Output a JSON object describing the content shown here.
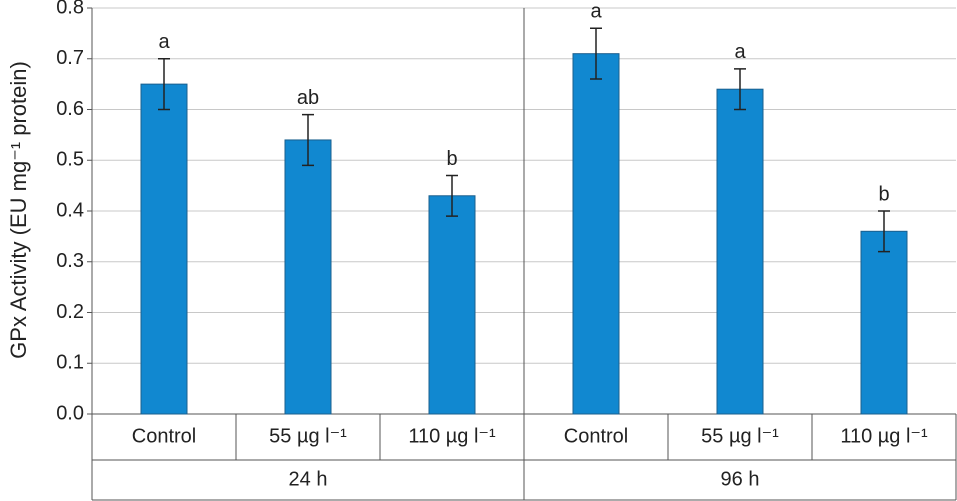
{
  "chart_data": {
    "type": "bar",
    "y_label": "GPx Activity (EU mg⁻¹ protein)",
    "categories": [
      "Control",
      "55 µg l⁻¹",
      "110 µg l⁻¹",
      "Control",
      "55 µg l⁻¹",
      "110 µg l⁻¹"
    ],
    "groups": [
      "24 h",
      "96 h"
    ],
    "values": [
      0.65,
      0.54,
      0.43,
      0.71,
      0.64,
      0.36
    ],
    "errors": [
      0.05,
      0.05,
      0.04,
      0.05,
      0.04,
      0.04
    ],
    "letters": [
      "a",
      "ab",
      "b",
      "a",
      "a",
      "b"
    ],
    "color": "#1188d0",
    "ylim": [
      0,
      0.8
    ],
    "yticks": [
      {
        "value": 0,
        "label": "0.0"
      },
      0.1,
      0.2,
      0.3,
      0.4,
      0.5,
      0.6,
      0.7,
      0.8
    ],
    "grid": true
  }
}
